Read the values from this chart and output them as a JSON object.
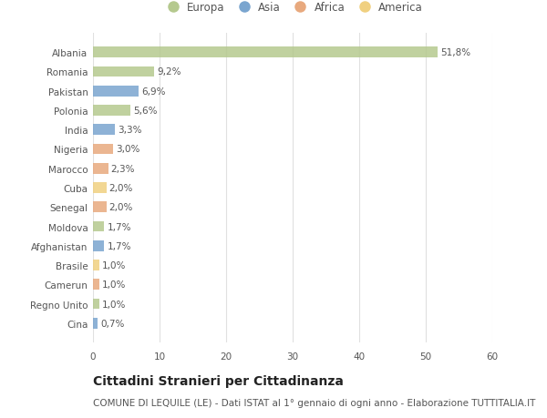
{
  "countries": [
    "Albania",
    "Romania",
    "Pakistan",
    "Polonia",
    "India",
    "Nigeria",
    "Marocco",
    "Cuba",
    "Senegal",
    "Moldova",
    "Afghanistan",
    "Brasile",
    "Camerun",
    "Regno Unito",
    "Cina"
  ],
  "values": [
    51.8,
    9.2,
    6.9,
    5.6,
    3.3,
    3.0,
    2.3,
    2.0,
    2.0,
    1.7,
    1.7,
    1.0,
    1.0,
    1.0,
    0.7
  ],
  "labels": [
    "51,8%",
    "9,2%",
    "6,9%",
    "5,6%",
    "3,3%",
    "3,0%",
    "2,3%",
    "2,0%",
    "2,0%",
    "1,7%",
    "1,7%",
    "1,0%",
    "1,0%",
    "1,0%",
    "0,7%"
  ],
  "continents": [
    "Europa",
    "Europa",
    "Asia",
    "Europa",
    "Asia",
    "Africa",
    "Africa",
    "America",
    "Africa",
    "Europa",
    "Asia",
    "America",
    "Africa",
    "Europa",
    "Asia"
  ],
  "continent_colors": {
    "Europa": "#b5c98e",
    "Asia": "#7aa5cf",
    "Africa": "#e8a97e",
    "America": "#f0d080"
  },
  "legend_order": [
    "Europa",
    "Asia",
    "Africa",
    "America"
  ],
  "xlim": [
    0,
    60
  ],
  "xticks": [
    0,
    10,
    20,
    30,
    40,
    50,
    60
  ],
  "title": "Cittadini Stranieri per Cittadinanza",
  "subtitle": "COMUNE DI LEQUILE (LE) - Dati ISTAT al 1° gennaio di ogni anno - Elaborazione TUTTITALIA.IT",
  "background_color": "#ffffff",
  "bar_height": 0.55,
  "grid_color": "#e0e0e0",
  "text_color": "#555555",
  "title_fontsize": 10,
  "subtitle_fontsize": 7.5,
  "label_fontsize": 7.5,
  "tick_fontsize": 7.5,
  "legend_fontsize": 8.5
}
